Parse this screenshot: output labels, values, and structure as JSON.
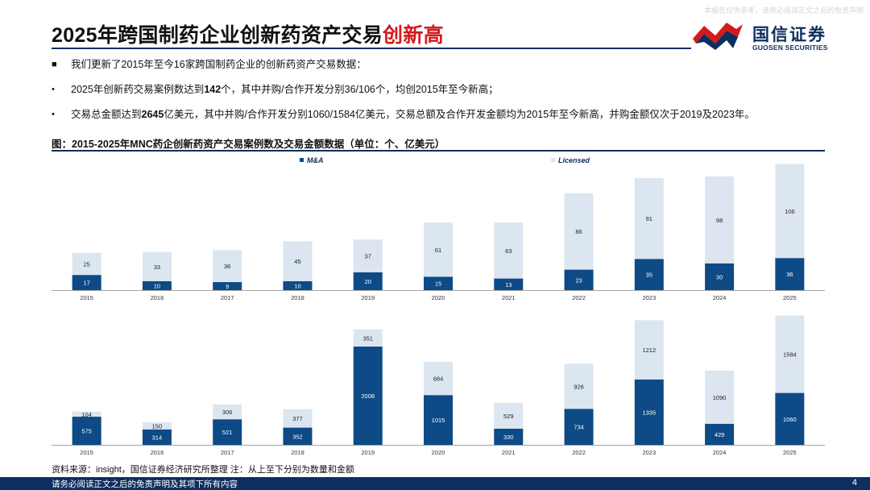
{
  "header": {
    "title_main": "2025年跨国制药企业创新药资产交易",
    "title_highlight": "创新高",
    "watermark": "本报告仅供参考，请务必阅读正文之后的免责声明",
    "logo_cn": "国信证券",
    "logo_en": "GUOSEN SECURITIES"
  },
  "bullets": [
    {
      "marker": "■",
      "parts": [
        {
          "t": "我们更新了2015年至今16家跨国制药企业的创新药资产交易数据："
        }
      ]
    },
    {
      "marker": "•",
      "parts": [
        {
          "t": "2025年创新药交易案例数达到"
        },
        {
          "t": "142",
          "b": true
        },
        {
          "t": "个，其中并购/合作开发分别36/106个，均创2015年至今新高；"
        }
      ]
    },
    {
      "marker": "•",
      "parts": [
        {
          "t": "交易总金额达到"
        },
        {
          "t": "2645",
          "b": true
        },
        {
          "t": "亿美元，其中并购/合作开发分别1060/1584亿美元，交易总额及合作开发金额均为2015年至今新高，并购金额仅次于2019及2023年。"
        }
      ]
    }
  ],
  "figure_title": "图：2015-2025年MNC药企创新药资产交易案例数及交易金额数据（单位：个、亿美元）",
  "colors": {
    "ma": "#0d4a86",
    "licensed": "#dce6f1",
    "axis": "#a6a6a6",
    "navy": "#0d2f5f",
    "red": "#d7191c"
  },
  "chart_data": [
    {
      "type": "bar",
      "stacked": true,
      "legend": [
        "M&A",
        "Licensed"
      ],
      "legend_position": "top",
      "categories": [
        "2015",
        "2016",
        "2017",
        "2018",
        "2019",
        "2020",
        "2021",
        "2022",
        "2023",
        "2024",
        "2025"
      ],
      "series": [
        {
          "name": "M&A",
          "values": [
            17,
            10,
            9,
            10,
            20,
            15,
            13,
            23,
            35,
            30,
            36
          ],
          "labels": [
            "17",
            "10",
            "9",
            "10",
            "20",
            "15",
            "13",
            "23",
            "35",
            "30",
            "36"
          ]
        },
        {
          "name": "Licensed",
          "values": [
            25,
            33,
            36,
            45,
            37,
            61,
            63,
            86,
            91,
            98,
            106
          ],
          "labels": [
            "25",
            "33",
            "36",
            "45",
            "37",
            "61",
            "63",
            "86",
            "91",
            "98",
            "106"
          ]
        }
      ],
      "ylim": [
        0,
        145
      ]
    },
    {
      "type": "bar",
      "stacked": true,
      "categories": [
        "2015",
        "2016",
        "2017",
        "2018",
        "2019",
        "2020",
        "2021",
        "2022",
        "2023",
        "2024",
        "2025"
      ],
      "series": [
        {
          "name": "M&A",
          "values": [
            575,
            314,
            521,
            352,
            2008,
            1015,
            330,
            734,
            1335,
            429,
            1060
          ],
          "labels": [
            "575",
            "314",
            "521",
            "352",
            "2008",
            "1015",
            "330",
            "734",
            "1335",
            "429",
            "1060"
          ]
        },
        {
          "name": "Licensed",
          "values": [
            104,
            150,
            306,
            377,
            351,
            684,
            529,
            926,
            1212,
            1090,
            1584
          ],
          "labels": [
            "104",
            "150",
            "306",
            "377",
            "351",
            "684",
            "529",
            "926",
            "1212",
            "1090",
            "1584"
          ]
        }
      ],
      "ylim": [
        0,
        2700
      ]
    }
  ],
  "source_note": "资料来源：insight，国信证券经济研究所整理  注：从上至下分别为数量和金额",
  "footer_text": "请务必阅读正文之后的免责声明及其项下所有内容",
  "page_number": "4"
}
